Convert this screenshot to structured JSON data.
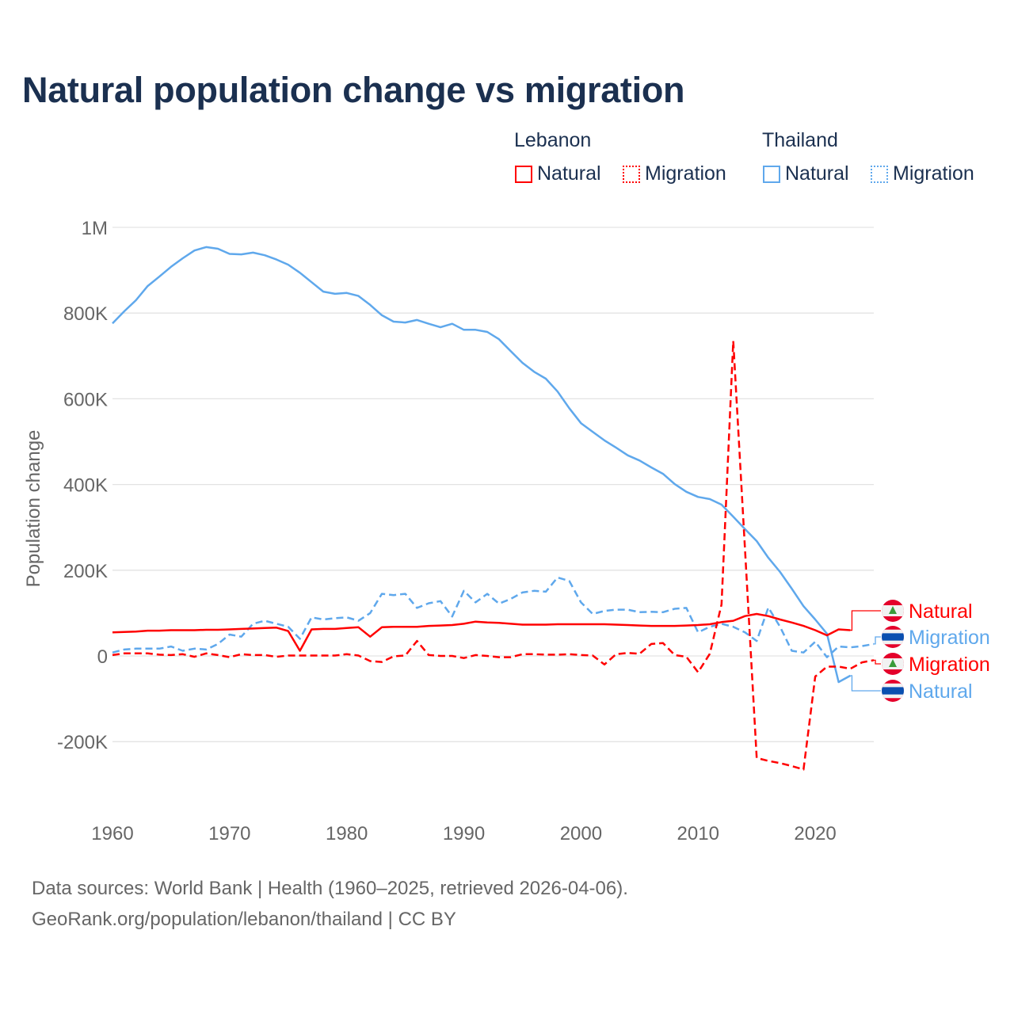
{
  "chart_data": {
    "type": "line",
    "title": "Natural population change vs migration",
    "xlabel": "",
    "ylabel": "Population change",
    "xlim": [
      1960,
      2025
    ],
    "ylim": [
      -300000,
      1000000
    ],
    "x_ticks": [
      "1960",
      "1970",
      "1980",
      "1990",
      "2000",
      "2010",
      "2020"
    ],
    "y_ticks": [
      {
        "v": 1000000,
        "label": "1M"
      },
      {
        "v": 800000,
        "label": "800K"
      },
      {
        "v": 600000,
        "label": "600K"
      },
      {
        "v": 400000,
        "label": "400K"
      },
      {
        "v": 200000,
        "label": "200K"
      },
      {
        "v": 0,
        "label": "0"
      },
      {
        "v": -200000,
        "label": "-200K"
      }
    ],
    "grid": true,
    "legend": {
      "placement": "top-right",
      "groups": [
        {
          "country": "Lebanon",
          "items": [
            {
              "label": "Natural",
              "style": "solid"
            },
            {
              "label": "Migration",
              "style": "dotted"
            }
          ]
        },
        {
          "country": "Thailand",
          "items": [
            {
              "label": "Natural",
              "style": "solid"
            },
            {
              "label": "Migration",
              "style": "dotted"
            }
          ]
        }
      ]
    },
    "colors": {
      "Lebanon": "#ff0000",
      "Thailand": "#5fa8ec"
    },
    "series": [
      {
        "name": "Thailand Natural",
        "country": "Thailand",
        "kind": "Natural",
        "dash": false,
        "start_year": 1960,
        "values": [
          776000,
          804000,
          830000,
          863000,
          885000,
          908000,
          928000,
          946000,
          954000,
          950000,
          938000,
          937000,
          941000,
          935000,
          925000,
          913000,
          894000,
          872000,
          850000,
          845000,
          847000,
          840000,
          819000,
          795000,
          780000,
          778000,
          784000,
          775000,
          767000,
          775000,
          761000,
          761000,
          756000,
          739000,
          711000,
          684000,
          663000,
          647000,
          617000,
          578000,
          543000,
          523000,
          503000,
          486000,
          468000,
          456000,
          440000,
          425000,
          401000,
          383000,
          371000,
          366000,
          353000,
          325000,
          296000,
          268000,
          229000,
          196000,
          157000,
          116000,
          85000,
          52000,
          -61000,
          -46000
        ]
      },
      {
        "name": "Thailand Migration",
        "country": "Thailand",
        "kind": "Migration",
        "dash": true,
        "start_year": 1960,
        "values": [
          8000,
          15000,
          17000,
          17000,
          17000,
          22000,
          12000,
          17000,
          15000,
          28000,
          50000,
          45000,
          75000,
          82000,
          75000,
          68000,
          40000,
          90000,
          85000,
          88000,
          90000,
          82000,
          100000,
          145000,
          142000,
          145000,
          112000,
          123000,
          128000,
          92000,
          152000,
          125000,
          145000,
          122000,
          133000,
          148000,
          152000,
          150000,
          183000,
          175000,
          125000,
          98000,
          105000,
          108000,
          108000,
          102000,
          103000,
          102000,
          110000,
          112000,
          55000,
          68000,
          75000,
          68000,
          55000,
          35000,
          113000,
          68000,
          12000,
          8000,
          33000,
          -3000,
          22000,
          20000,
          23000,
          28000
        ]
      },
      {
        "name": "Lebanon Natural",
        "country": "Lebanon",
        "kind": "Natural",
        "dash": false,
        "start_year": 1960,
        "values": [
          55000,
          56000,
          57000,
          59000,
          59000,
          60000,
          60000,
          60000,
          61000,
          61000,
          62000,
          63000,
          64000,
          65000,
          66000,
          58000,
          12000,
          62000,
          63000,
          63000,
          65000,
          67000,
          45000,
          67000,
          68000,
          68000,
          68000,
          70000,
          71000,
          72000,
          75000,
          80000,
          78000,
          77000,
          75000,
          73000,
          73000,
          73000,
          74000,
          74000,
          74000,
          74000,
          74000,
          73000,
          72000,
          71000,
          70000,
          70000,
          70000,
          71000,
          72000,
          74000,
          79000,
          82000,
          93000,
          98000,
          93000,
          85000,
          78000,
          70000,
          60000,
          48000,
          62000,
          60000
        ]
      },
      {
        "name": "Lebanon Migration",
        "country": "Lebanon",
        "kind": "Migration",
        "dash": true,
        "start_year": 1960,
        "values": [
          2000,
          6000,
          6000,
          6000,
          3000,
          2000,
          4000,
          -2000,
          6000,
          2000,
          -3000,
          4000,
          2000,
          2000,
          -2000,
          1000,
          1000,
          1000,
          1000,
          1000,
          4000,
          1000,
          -12000,
          -14000,
          -1000,
          1000,
          35000,
          2000,
          0,
          0,
          -5000,
          2000,
          0,
          -3000,
          -3000,
          4000,
          4000,
          3000,
          3000,
          4000,
          2000,
          1000,
          -20000,
          4000,
          7000,
          5000,
          28000,
          30000,
          2000,
          -2000,
          -38000,
          5000,
          120000,
          735000,
          250000,
          -238000,
          -245000,
          -250000,
          -257000,
          -265000,
          -48000,
          -25000,
          -25000,
          -30000,
          -15000,
          -10000
        ]
      }
    ],
    "end_labels": [
      {
        "label": "Natural",
        "country": "Lebanon",
        "series": 2
      },
      {
        "label": "Migration",
        "country": "Thailand",
        "series": 1
      },
      {
        "label": "Migration",
        "country": "Lebanon",
        "series": 3
      },
      {
        "label": "Natural",
        "country": "Thailand",
        "series": 0
      }
    ]
  },
  "footer": {
    "line1": "Data sources: World Bank | Health (1960–2025, retrieved 2026-04-06).",
    "line2": "GeoRank.org/population/lebanon/thailand | CC BY"
  }
}
